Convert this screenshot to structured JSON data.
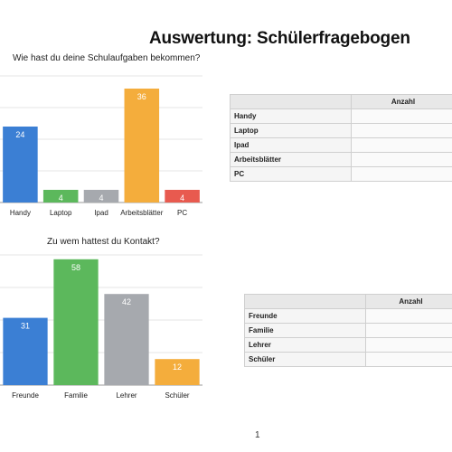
{
  "page": {
    "title": "Auswertung: Schülerfragebogen",
    "page_number": "1"
  },
  "chart_data": [
    {
      "type": "bar",
      "title": "Wie hast du deine Schulaufgaben bekommen?",
      "categories": [
        "Handy",
        "Laptop",
        "Ipad",
        "Arbeitsblätter",
        "PC"
      ],
      "values": [
        24,
        4,
        4,
        36,
        4
      ],
      "colors": [
        "#3b7fd4",
        "#5cb85c",
        "#a6a9ae",
        "#f4ad3c",
        "#e85a4f"
      ],
      "ylim": [
        0,
        40
      ],
      "grid": true,
      "data_labels": true
    },
    {
      "type": "bar",
      "title": "Zu wem hattest du Kontakt?",
      "categories": [
        "Freunde",
        "Familie",
        "Lehrer",
        "Schüler"
      ],
      "values": [
        31,
        58,
        42,
        12
      ],
      "colors": [
        "#3b7fd4",
        "#5cb85c",
        "#a6a9ae",
        "#f4ad3c"
      ],
      "ylim": [
        0,
        60
      ],
      "grid": true,
      "data_labels": true
    }
  ],
  "tables": [
    {
      "header": "Anzahl",
      "rows": [
        "Handy",
        "Laptop",
        "Ipad",
        "Arbeitsblätter",
        "PC"
      ]
    },
    {
      "header": "Anzahl",
      "rows": [
        "Freunde",
        "Familie",
        "Lehrer",
        "Schüler"
      ]
    }
  ]
}
